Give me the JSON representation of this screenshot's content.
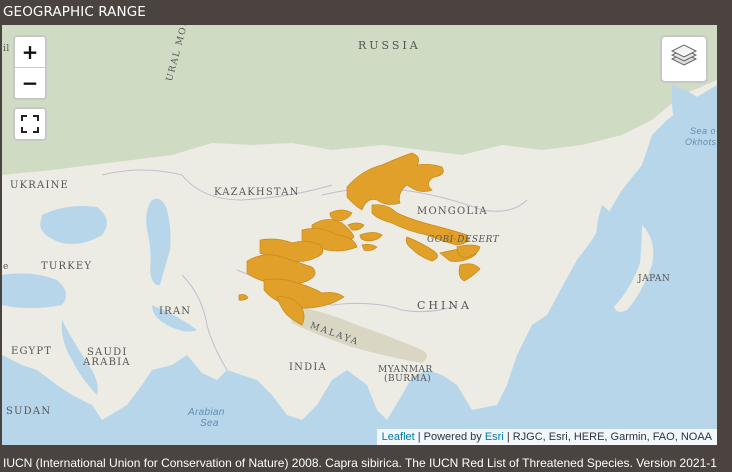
{
  "header": {
    "title": "GEOGRAPHIC RANGE"
  },
  "map": {
    "controls": {
      "zoom_in": "+",
      "zoom_out": "−",
      "fullscreen_icon": "fullscreen-icon",
      "layers_icon": "layers-icon"
    },
    "labels": {
      "russia": "RUSSIA",
      "ural_mountains": "URAL MOUNTAINS",
      "ukraine": "UKRAINE",
      "kazakhstan": "KAZAKHSTAN",
      "mongolia": "MONGOLIA",
      "gobi_desert": "GOBI DESERT",
      "turkey": "TURKEY",
      "iran": "IRAN",
      "china": "CHINA",
      "himalaya": "MALAYA",
      "japan": "JAPAN",
      "egypt": "EGYPT",
      "saudi_arabia_1": "SAUDI",
      "saudi_arabia_2": "ARABIA",
      "india": "INDIA",
      "myanmar_1": "MYANMAR",
      "myanmar_2": "(BURMA)",
      "sudan": "SUDAN",
      "arabian_sea_1": "Arabian",
      "arabian_sea_2": "Sea",
      "sea_okhotsk_1": "Sea o",
      "sea_okhotsk_2": "Okhots",
      "edge_left_top": "il",
      "edge_left_mid": "e"
    },
    "range_color": "#e0a02a",
    "attribution": {
      "leaflet": "Leaflet",
      "separator": " | Powered by ",
      "esri": "Esri",
      "rest": " | RJGC, Esri, HERE, Garmin, FAO, NOAA"
    }
  },
  "footer": {
    "citation": "IUCN (International Union for Conservation of Nature) 2008. Capra sibirica. The IUCN Red List of Threatened Species. Version 2021-1"
  }
}
